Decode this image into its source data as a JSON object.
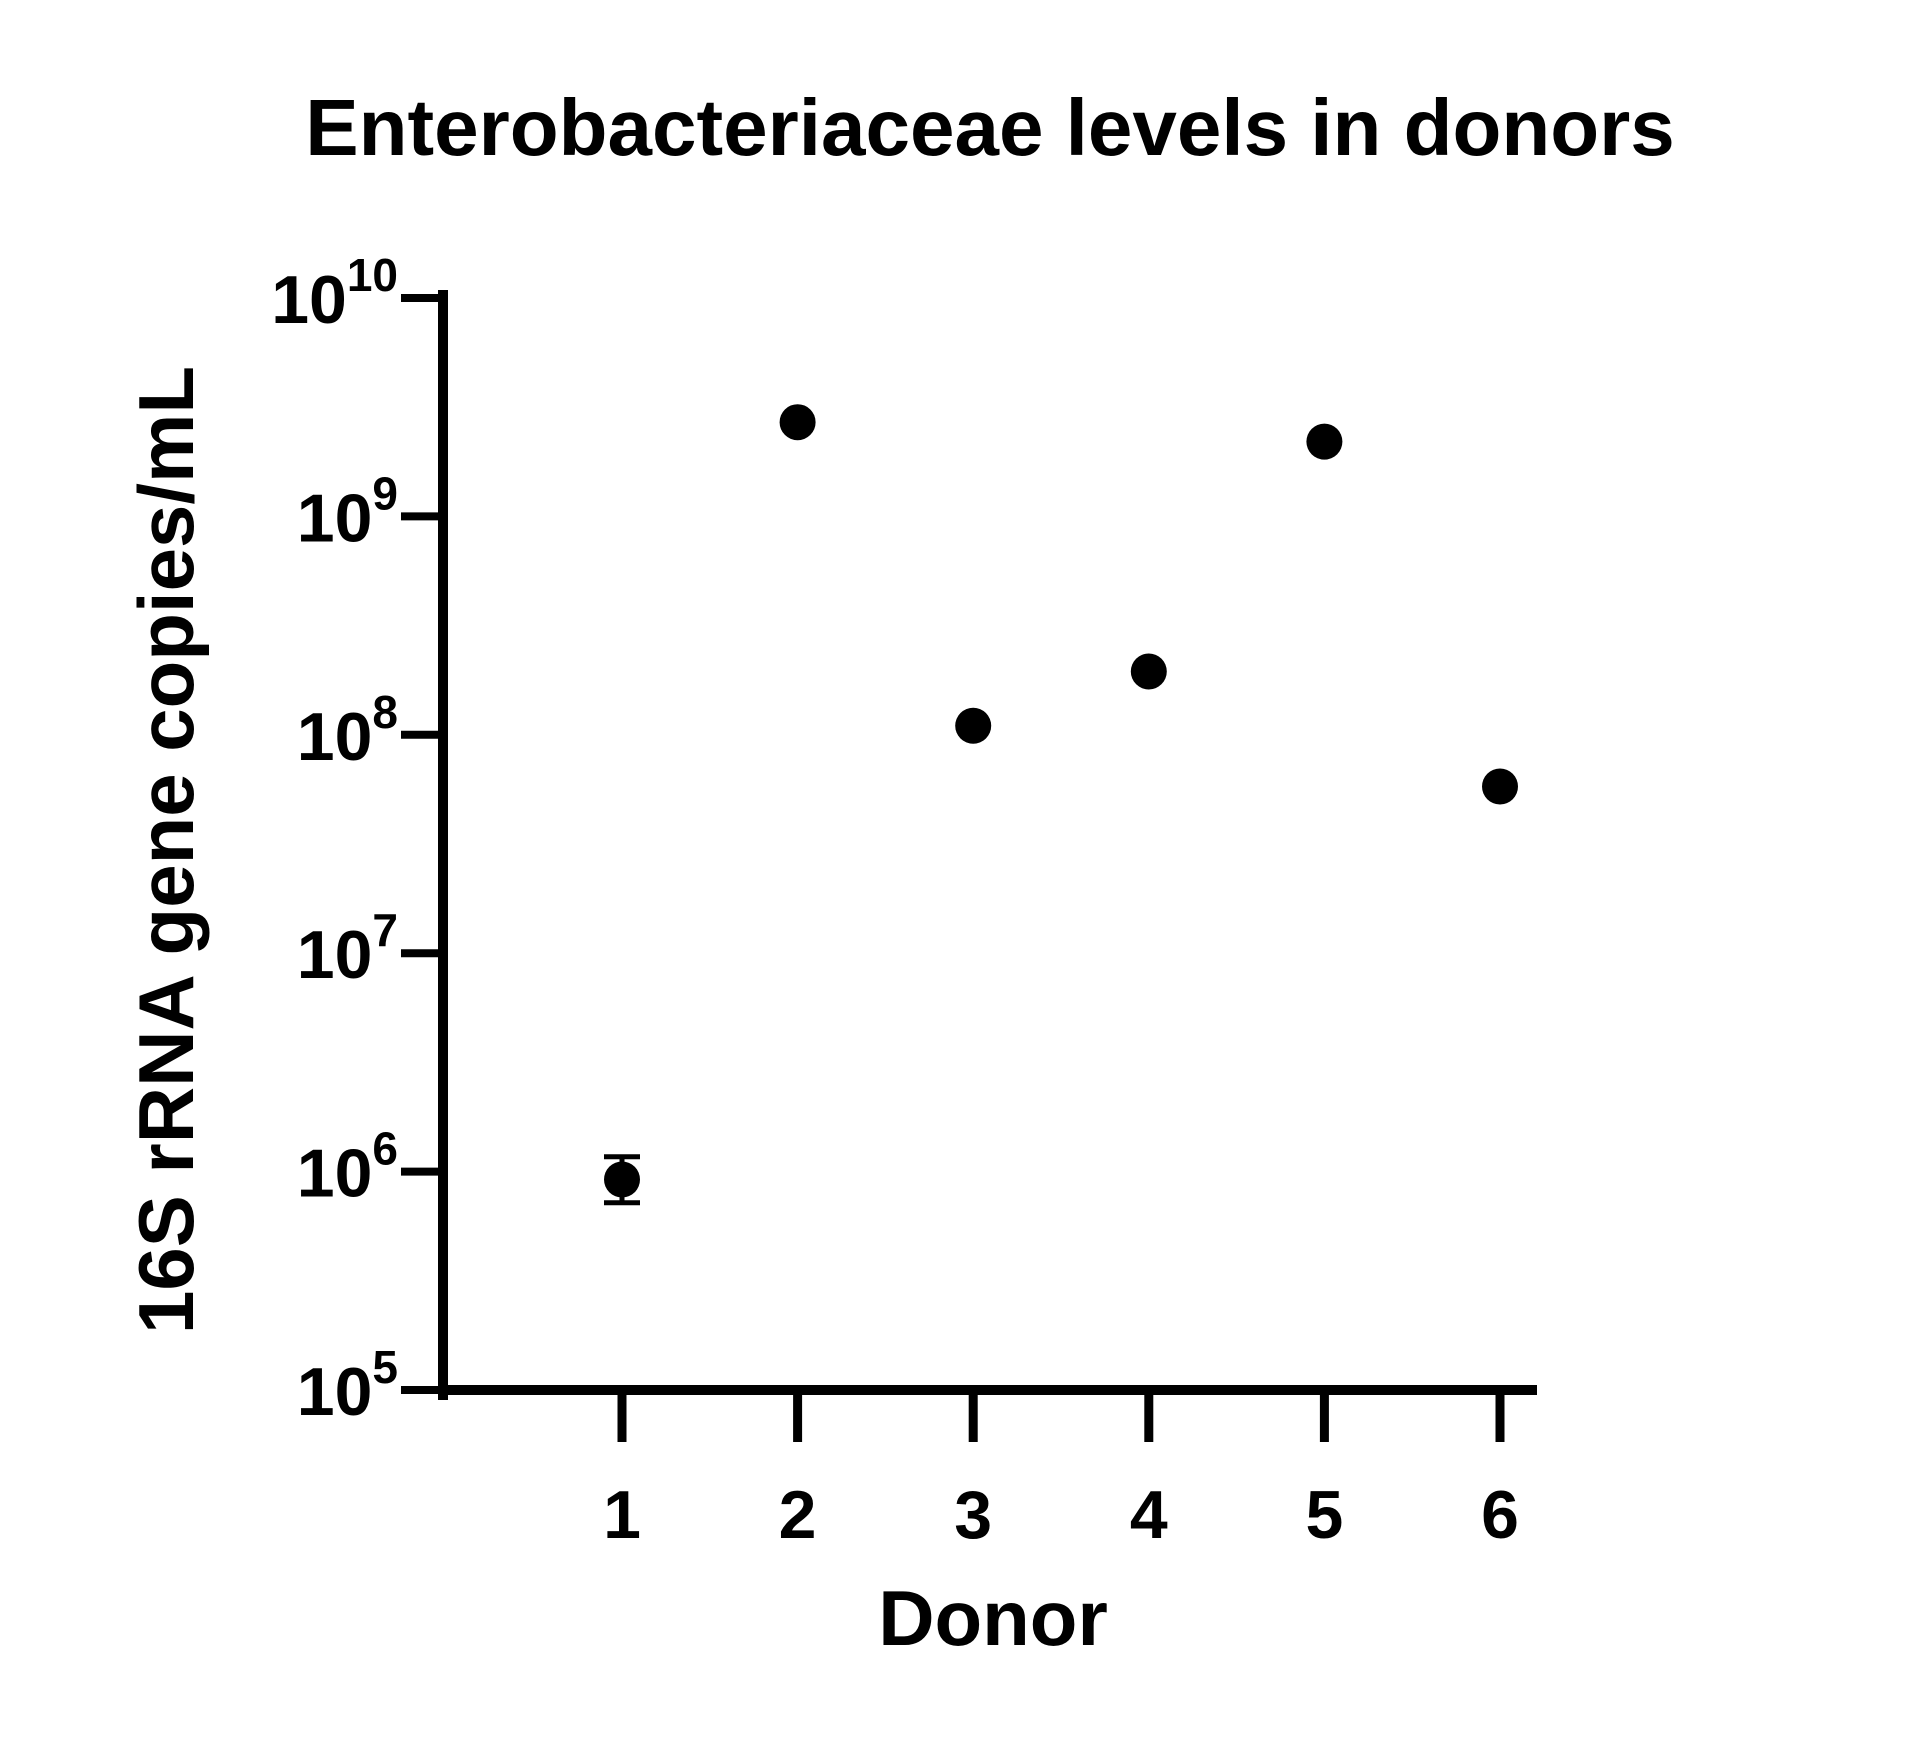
{
  "chart_data": {
    "type": "scatter",
    "title": "Enterobacteriaceae levels in donors",
    "xlabel": "Donor",
    "ylabel": "16S rRNA gene copies/mL",
    "y_scale": "log",
    "ylim": [
      100000,
      10000000000
    ],
    "y_ticks": [
      {
        "value": 100000,
        "base": "10",
        "exp": "5"
      },
      {
        "value": 1000000,
        "base": "10",
        "exp": "6"
      },
      {
        "value": 10000000,
        "base": "10",
        "exp": "7"
      },
      {
        "value": 100000000,
        "base": "10",
        "exp": "8"
      },
      {
        "value": 1000000000,
        "base": "10",
        "exp": "9"
      },
      {
        "value": 10000000000,
        "base": "10",
        "exp": "10"
      }
    ],
    "categories": [
      "1",
      "2",
      "3",
      "4",
      "5",
      "6"
    ],
    "series": [
      {
        "values": [
          920000,
          2700000000,
          110000000,
          195000000,
          2200000000,
          58000000
        ],
        "error_low": [
          720000,
          null,
          null,
          null,
          null,
          null
        ],
        "error_high": [
          1170000,
          null,
          null,
          null,
          null,
          null
        ]
      }
    ],
    "grid": false,
    "legend": "none",
    "marker_color": "#000000"
  }
}
